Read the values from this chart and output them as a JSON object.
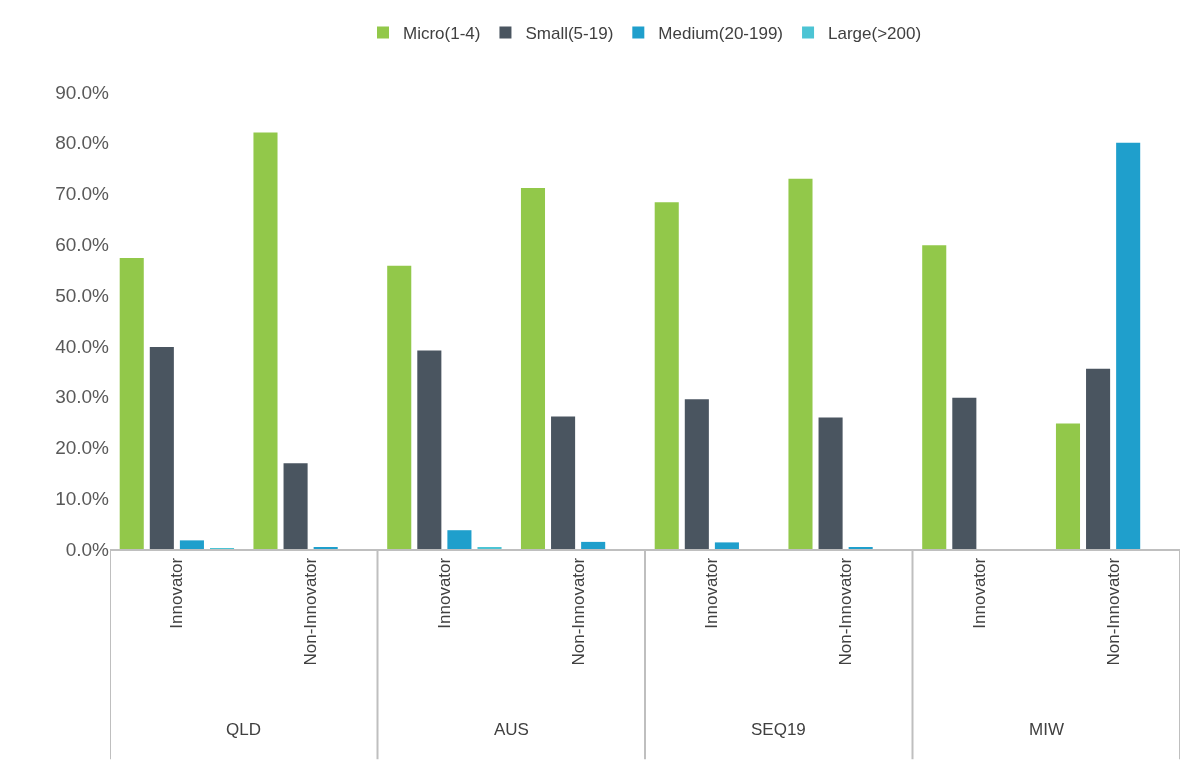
{
  "chart_data": {
    "type": "bar",
    "categories": [
      "Innovator",
      "Non-Innovator",
      "Innovator",
      "Non-Innovator",
      "Innovator",
      "Non-Innovator",
      "Innovator",
      "Non-Innovator"
    ],
    "series": [
      {
        "name": "Micro(1-4)",
        "color": "#92c84a",
        "values": [
          57.3,
          82.0,
          55.8,
          71.1,
          68.3,
          72.9,
          59.8,
          24.7
        ]
      },
      {
        "name": "Small(5-19)",
        "color": "#4a5560",
        "values": [
          39.8,
          16.9,
          39.1,
          26.1,
          29.5,
          25.9,
          29.8,
          35.5
        ]
      },
      {
        "name": "Medium(20-199)",
        "color": "#1f9fcc",
        "values": [
          1.7,
          0.2,
          3.7,
          1.4,
          1.3,
          0.3,
          0,
          80.0
        ]
      },
      {
        "name": "Large(>200)",
        "color": "#4cc4d4",
        "values": [
          0.1,
          0,
          0.2,
          0,
          0,
          0,
          0,
          0
        ]
      }
    ],
    "annotations": [
      "QLD",
      "AUS",
      "SEQ19",
      "MIW"
    ],
    "ylim": [
      0,
      90
    ],
    "yticks": [
      {
        "value": 0,
        "label": "0.0%"
      },
      {
        "value": 10,
        "label": "10.0%"
      },
      {
        "value": 20,
        "label": "20.0%"
      },
      {
        "value": 30,
        "label": "30.0%"
      },
      {
        "value": 40,
        "label": "40.0%"
      },
      {
        "value": 50,
        "label": "50.0%"
      },
      {
        "value": 60,
        "label": "60.0%"
      },
      {
        "value": 70,
        "label": "70.0%"
      },
      {
        "value": 80,
        "label": "80.0%"
      },
      {
        "value": 90,
        "label": "90.0%"
      }
    ],
    "legend": "top"
  }
}
